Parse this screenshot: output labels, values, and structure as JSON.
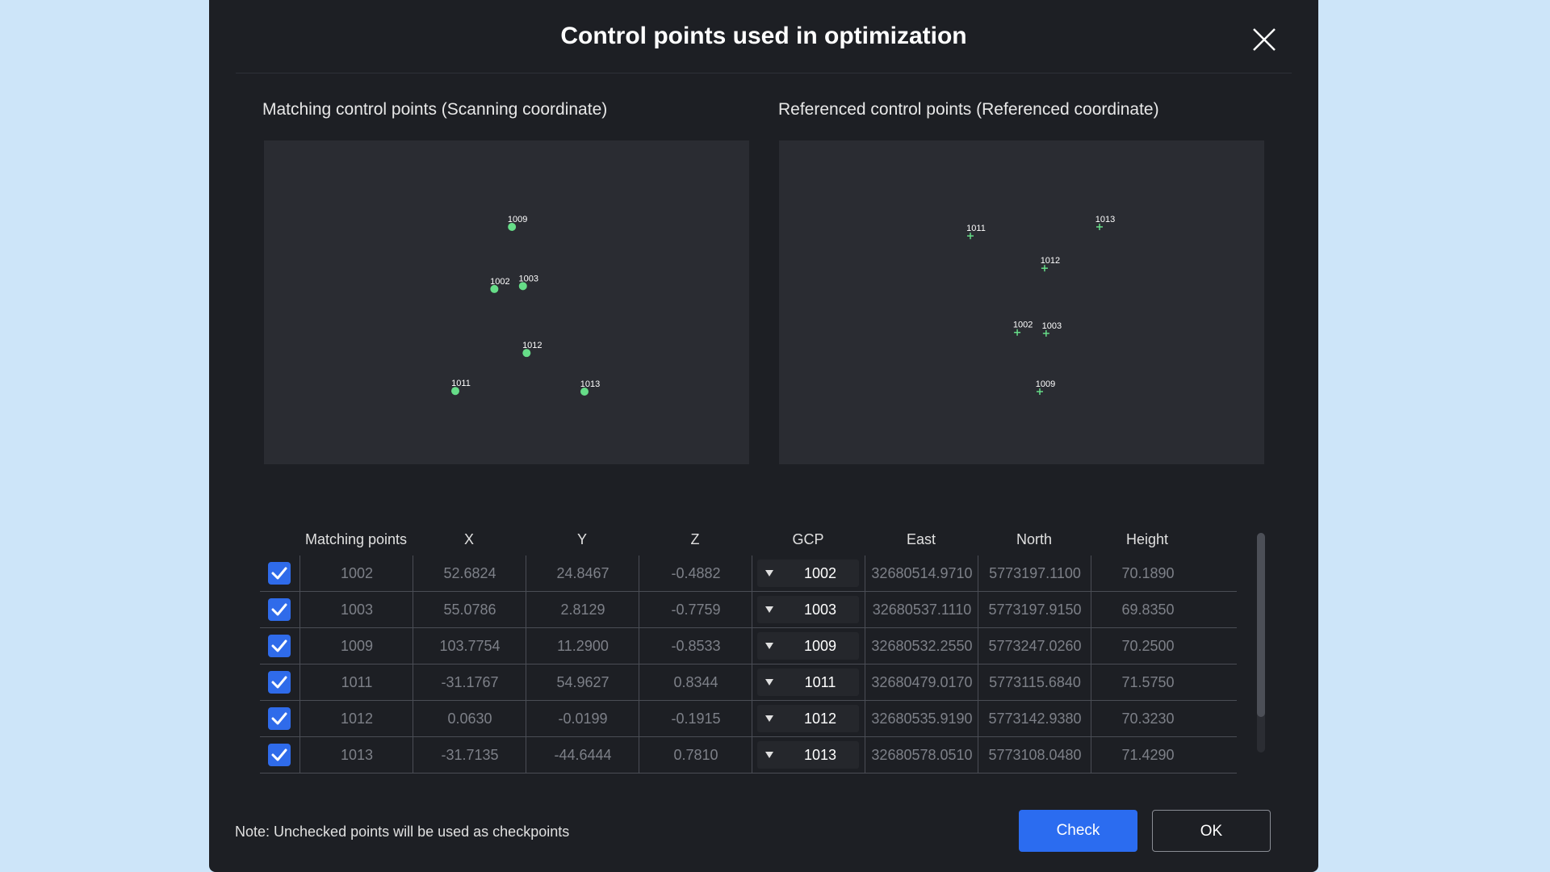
{
  "dialog": {
    "title": "Control points used in optimization",
    "note": "Note: Unchecked points will be used as checkpoints",
    "buttons": {
      "check": "Check",
      "ok": "OK"
    }
  },
  "panels": {
    "left_title": "Matching control points  (Scanning coordinate)",
    "right_title": "Referenced control points  (Referenced coordinate)"
  },
  "table": {
    "headers": [
      "Matching points",
      "X",
      "Y",
      "Z",
      "GCP",
      "East",
      "North",
      "Height"
    ],
    "rows": [
      {
        "checked": true,
        "point": "1002",
        "x": "52.6824",
        "y": "24.8467",
        "z": "-0.4882",
        "gcp": "1002",
        "east": "32680514.9710",
        "north": "5773197.1100",
        "height": "70.1890"
      },
      {
        "checked": true,
        "point": "1003",
        "x": "55.0786",
        "y": "2.8129",
        "z": "-0.7759",
        "gcp": "1003",
        "east": "32680537.1110",
        "north": "5773197.9150",
        "height": "69.8350"
      },
      {
        "checked": true,
        "point": "1009",
        "x": "103.7754",
        "y": "11.2900",
        "z": "-0.8533",
        "gcp": "1009",
        "east": "32680532.2550",
        "north": "5773247.0260",
        "height": "70.2500"
      },
      {
        "checked": true,
        "point": "1011",
        "x": "-31.1767",
        "y": "54.9627",
        "z": "0.8344",
        "gcp": "1011",
        "east": "32680479.0170",
        "north": "5773115.6840",
        "height": "71.5750"
      },
      {
        "checked": true,
        "point": "1012",
        "x": "0.0630",
        "y": "-0.0199",
        "z": "-0.1915",
        "gcp": "1012",
        "east": "32680535.9190",
        "north": "5773142.9380",
        "height": "70.3230"
      },
      {
        "checked": true,
        "point": "1013",
        "x": "-31.7135",
        "y": "-44.6444",
        "z": "0.7810",
        "gcp": "1013",
        "east": "32680578.0510",
        "north": "5773108.0480",
        "height": "71.4290"
      }
    ]
  },
  "icons": {
    "close": "close-icon",
    "checkbox": "checkmark-icon",
    "dropdown": "triangle-down-icon"
  },
  "colors": {
    "accent": "#2b6cf0",
    "point_marker": "#66dd88"
  },
  "chart_data": [
    {
      "type": "scatter",
      "series": [
        {
          "label": "1002",
          "x": 52.6824,
          "y": 24.8467
        },
        {
          "label": "1003",
          "x": 55.0786,
          "y": 2.8129
        },
        {
          "label": "1009",
          "x": 103.7754,
          "y": 11.29
        },
        {
          "label": "1011",
          "x": -31.1767,
          "y": 54.9627
        },
        {
          "label": "1012",
          "x": 0.063,
          "y": -0.0199
        },
        {
          "label": "1013",
          "x": -31.7135,
          "y": -44.6444
        }
      ],
      "marker": "dot",
      "grid": false
    },
    {
      "type": "scatter",
      "series": [
        {
          "label": "1002",
          "east": 32680514.971,
          "north": 5773197.11
        },
        {
          "label": "1003",
          "east": 32680537.111,
          "north": 5773197.915
        },
        {
          "label": "1009",
          "east": 32680532.255,
          "north": 5773247.026
        },
        {
          "label": "1011",
          "east": 32680479.017,
          "north": 5773115.684
        },
        {
          "label": "1012",
          "east": 32680535.919,
          "north": 5773142.938
        },
        {
          "label": "1013",
          "east": 32680578.051,
          "north": 5773108.048
        }
      ],
      "marker": "cross",
      "grid": false
    }
  ]
}
